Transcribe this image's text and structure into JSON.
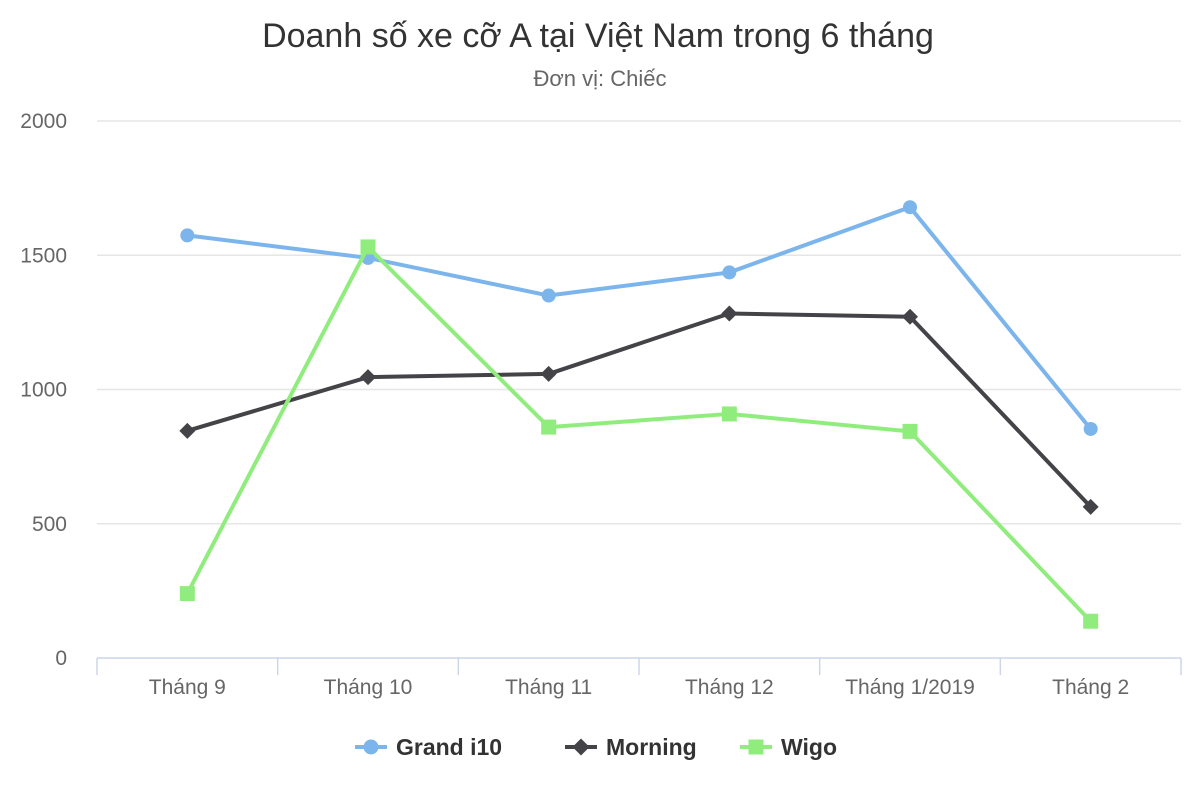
{
  "chart_data": {
    "type": "line",
    "title": "Doanh số xe cỡ A tại Việt Nam trong 6 tháng",
    "subtitle": "Đơn vị: Chiếc",
    "xlabel": "",
    "ylabel": "",
    "categories": [
      "Tháng 9",
      "Tháng 10",
      "Tháng 11",
      "Tháng 12",
      "Tháng 1/2019",
      "Tháng 2"
    ],
    "ylim": [
      0,
      2000
    ],
    "yticks": [
      0,
      500,
      1000,
      1500,
      2000
    ],
    "grid": true,
    "legend_position": "bottom",
    "series": [
      {
        "name": "Grand i10",
        "color": "#7cb5ec",
        "marker": "circle",
        "values": [
          1574,
          1490,
          1350,
          1436,
          1679,
          853
        ]
      },
      {
        "name": "Morning",
        "color": "#434348",
        "marker": "diamond",
        "values": [
          846,
          1046,
          1058,
          1283,
          1271,
          563
        ]
      },
      {
        "name": "Wigo",
        "color": "#90ed7d",
        "marker": "square",
        "values": [
          240,
          1531,
          860,
          909,
          844,
          137
        ]
      }
    ]
  }
}
